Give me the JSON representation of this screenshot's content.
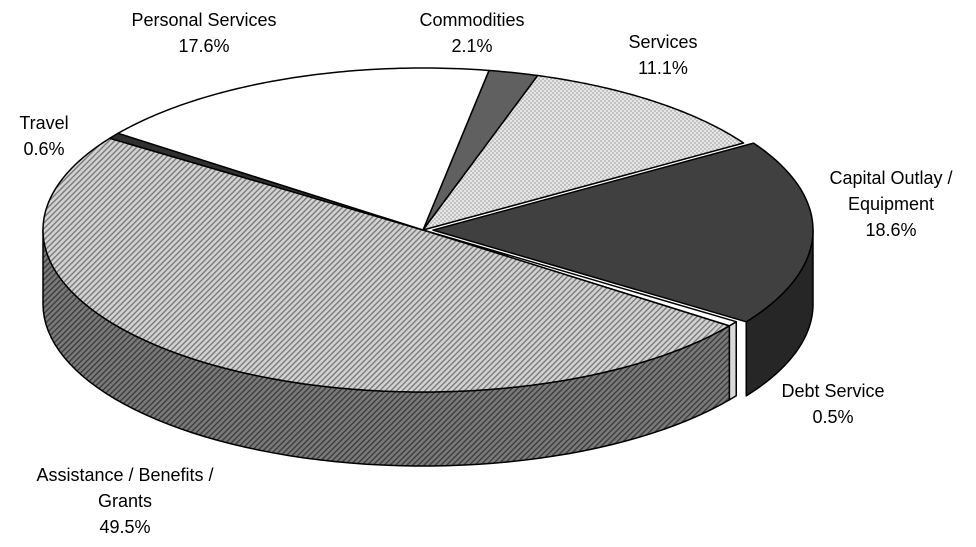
{
  "chart_data": {
    "type": "pie",
    "style": "3d-exploded-edge",
    "start_category": "Commodities",
    "direction": "clockwise",
    "categories": [
      "Commodities",
      "Services",
      "Capital Outlay / Equipment",
      "Debt Service",
      "Assistance / Benefits / Grants",
      "Travel",
      "Personal Services"
    ],
    "values": [
      2.1,
      11.1,
      18.6,
      0.5,
      49.5,
      0.6,
      17.6
    ],
    "value_labels": [
      "2.1%",
      "11.1%",
      "18.6%",
      "0.5%",
      "49.5%",
      "0.6%",
      "17.6%"
    ],
    "fills": [
      {
        "kind": "solid",
        "color": "#606060"
      },
      {
        "kind": "dots",
        "color": "#e6e6e6",
        "ink": "#8a8a8a"
      },
      {
        "kind": "solid",
        "color": "#404040"
      },
      {
        "kind": "solid",
        "color": "#ffffff"
      },
      {
        "kind": "hatch",
        "color": "#d2d2d2",
        "ink": "#7a7a7a"
      },
      {
        "kind": "solid",
        "color": "#303030"
      },
      {
        "kind": "solid",
        "color": "#ffffff"
      }
    ],
    "side_fills": {
      "Capital Outlay / Equipment": "#262626",
      "Debt Service": "#d8d8d8",
      "Assistance / Benefits / Grants": "#6a6a6a"
    },
    "label_lines": {
      "Commodities": [
        "Commodities",
        "2.1%"
      ],
      "Services": [
        "Services",
        "11.1%"
      ],
      "Capital Outlay / Equipment": [
        "Capital Outlay /",
        "Equipment",
        "18.6%"
      ],
      "Debt Service": [
        "Debt Service",
        "0.5%"
      ],
      "Assistance / Benefits / Grants": [
        "Assistance / Benefits /",
        "Grants",
        "49.5%"
      ],
      "Travel": [
        "Travel",
        "0.6%"
      ],
      "Personal Services": [
        "Personal Services",
        "17.6%"
      ]
    }
  }
}
